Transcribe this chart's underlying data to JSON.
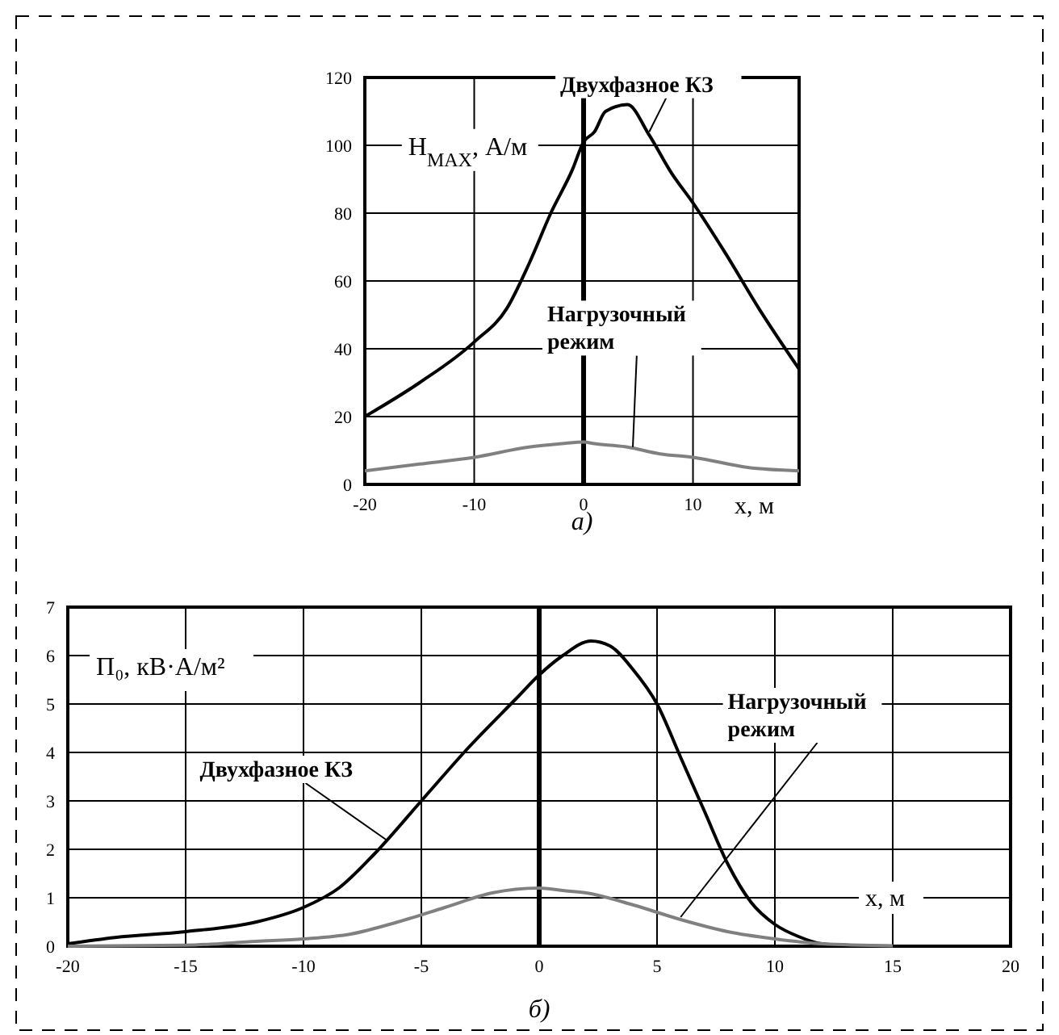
{
  "chart_data": [
    {
      "type": "line",
      "xlabel": "x, м",
      "ylabel": "H$_{MAX}$, А/м",
      "annotations": [
        "а)"
      ],
      "xlim": [
        -20,
        19.7
      ],
      "ylim": [
        0,
        120
      ],
      "xticks": [
        -20,
        -10,
        0,
        10
      ],
      "yticks": [
        0,
        20,
        40,
        60,
        80,
        100,
        120
      ],
      "grid": true,
      "ref_lines": [
        {
          "axis": "x",
          "value": 0,
          "color": "#000000"
        }
      ],
      "series": [
        {
          "name": "Двухфазное КЗ",
          "color": "#000000",
          "x": [
            -20,
            -15,
            -10,
            -7,
            -5,
            -3,
            -1,
            0,
            1,
            2,
            4,
            6,
            8,
            10,
            13,
            16,
            19.7
          ],
          "values": [
            20,
            30,
            42,
            52,
            65,
            80,
            93,
            101,
            104,
            110,
            112,
            103,
            92,
            83,
            68,
            52,
            34
          ]
        },
        {
          "name": "Нагрузочный режим",
          "color": "#808080",
          "x": [
            -20,
            -15,
            -10,
            -5,
            -2,
            0,
            1,
            4,
            7,
            10,
            15,
            19.7
          ],
          "values": [
            4,
            6,
            8,
            11,
            12,
            12.5,
            12,
            11,
            9,
            8,
            5,
            4
          ]
        }
      ]
    },
    {
      "type": "line",
      "xlabel": "x, м",
      "ylabel": "П₀, кВ·А/м²",
      "annotations": [
        "б)"
      ],
      "xlim": [
        -20,
        20
      ],
      "ylim": [
        0,
        7
      ],
      "xticks": [
        -20,
        -15,
        -10,
        -5,
        0,
        5,
        10,
        15,
        20
      ],
      "yticks": [
        0,
        1,
        2,
        3,
        4,
        5,
        6,
        7
      ],
      "grid": true,
      "ref_lines": [
        {
          "axis": "x",
          "value": 0,
          "color": "#000000"
        }
      ],
      "series": [
        {
          "name": "Двухфазное КЗ",
          "color": "#000000",
          "x": [
            -20,
            -18,
            -15,
            -12,
            -10,
            -8.5,
            -7,
            -5,
            -3,
            -1,
            0,
            1,
            2.2,
            3,
            4,
            5,
            6,
            7,
            8,
            9,
            10,
            11,
            12,
            13,
            15
          ],
          "values": [
            0.05,
            0.18,
            0.3,
            0.5,
            0.8,
            1.2,
            1.9,
            3,
            4.1,
            5.1,
            5.6,
            6,
            6.3,
            6.2,
            5.7,
            5,
            3.9,
            2.8,
            1.7,
            0.9,
            0.45,
            0.2,
            0.05,
            0.02,
            0
          ]
        },
        {
          "name": "Нагрузочный режим",
          "color": "#808080",
          "x": [
            -20,
            -15,
            -12,
            -10,
            -8,
            -6,
            -4,
            -2,
            0,
            1,
            2,
            4,
            6,
            8,
            10,
            12,
            15
          ],
          "values": [
            0,
            0.02,
            0.1,
            0.15,
            0.25,
            0.5,
            0.8,
            1.1,
            1.2,
            1.15,
            1.1,
            0.85,
            0.55,
            0.3,
            0.15,
            0.05,
            0.01
          ]
        }
      ]
    }
  ]
}
